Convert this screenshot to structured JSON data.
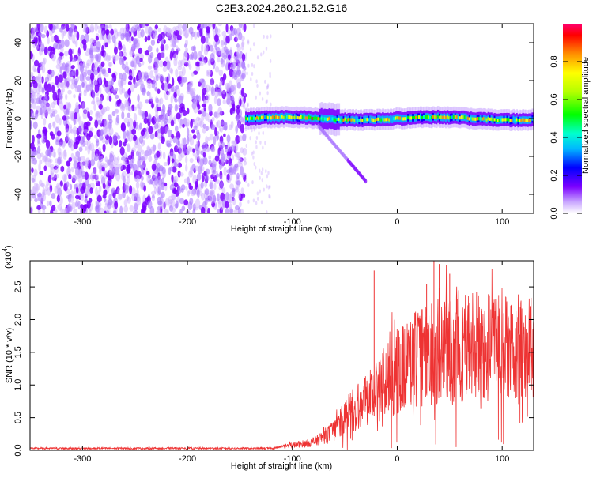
{
  "chart_data": [
    {
      "type": "heatmap",
      "title": "C2E3.2024.260.21.52.G16",
      "xlabel": "Height of straight line (km)",
      "ylabel": "Frequency (Hz)",
      "xlim": [
        -350,
        130
      ],
      "ylim": [
        -50,
        50
      ],
      "xticks": [
        "-300",
        "-200",
        "-100",
        "0",
        "100"
      ],
      "yticks": [
        "-40",
        "-20",
        "0",
        "20",
        "40"
      ],
      "colorbar": {
        "label": "Normalized spectral amplitude",
        "range": [
          0,
          1
        ],
        "ticks": [
          "0.0",
          "0.2",
          "0.4",
          "0.6",
          "0.8"
        ]
      },
      "noise_region_x": [
        -350,
        -145
      ],
      "signal_band": {
        "x_start": -145,
        "x_end": 130,
        "center_frequency_hz": 0,
        "half_width_hz": 2.5,
        "branch_to": {
          "x": -30,
          "y": -33
        }
      },
      "grid": false
    },
    {
      "type": "line",
      "xlabel": "Height of straight line (km)",
      "ylabel": "SNR (10 * v/v)",
      "scale_label": "(x10",
      "scale_exp": "4",
      "xlim": [
        -350,
        130
      ],
      "ylim": [
        0,
        2.9
      ],
      "xticks": [
        "-300",
        "-200",
        "-100",
        "0",
        "100"
      ],
      "yticks": [
        "0.0",
        "0.5",
        "1.0",
        "1.5",
        "2.0",
        "2.5"
      ],
      "series": [
        {
          "color": "#ee3333",
          "envelope_x": [
            -350,
            -120,
            -100,
            -80,
            -60,
            -50,
            -40,
            -30,
            -20,
            -10,
            0,
            10,
            20,
            30,
            40,
            50,
            60,
            70,
            80,
            90,
            100,
            110,
            120,
            130
          ],
          "envelope_y": [
            0.03,
            0.03,
            0.08,
            0.12,
            0.3,
            0.5,
            0.65,
            0.8,
            0.9,
            1.05,
            1.2,
            1.3,
            1.4,
            1.45,
            1.5,
            1.5,
            1.55,
            1.6,
            1.6,
            1.6,
            1.6,
            1.55,
            1.55,
            1.5
          ],
          "spikes": [
            {
              "x": -22,
              "y": 2.75
            },
            {
              "x": 35,
              "y": 2.9
            },
            {
              "x": 40,
              "y": 2.85
            },
            {
              "x": 28,
              "y": 2.55
            },
            {
              "x": 50,
              "y": 2.7
            }
          ],
          "mean_peak": 1.6
        }
      ],
      "grid": false
    }
  ]
}
